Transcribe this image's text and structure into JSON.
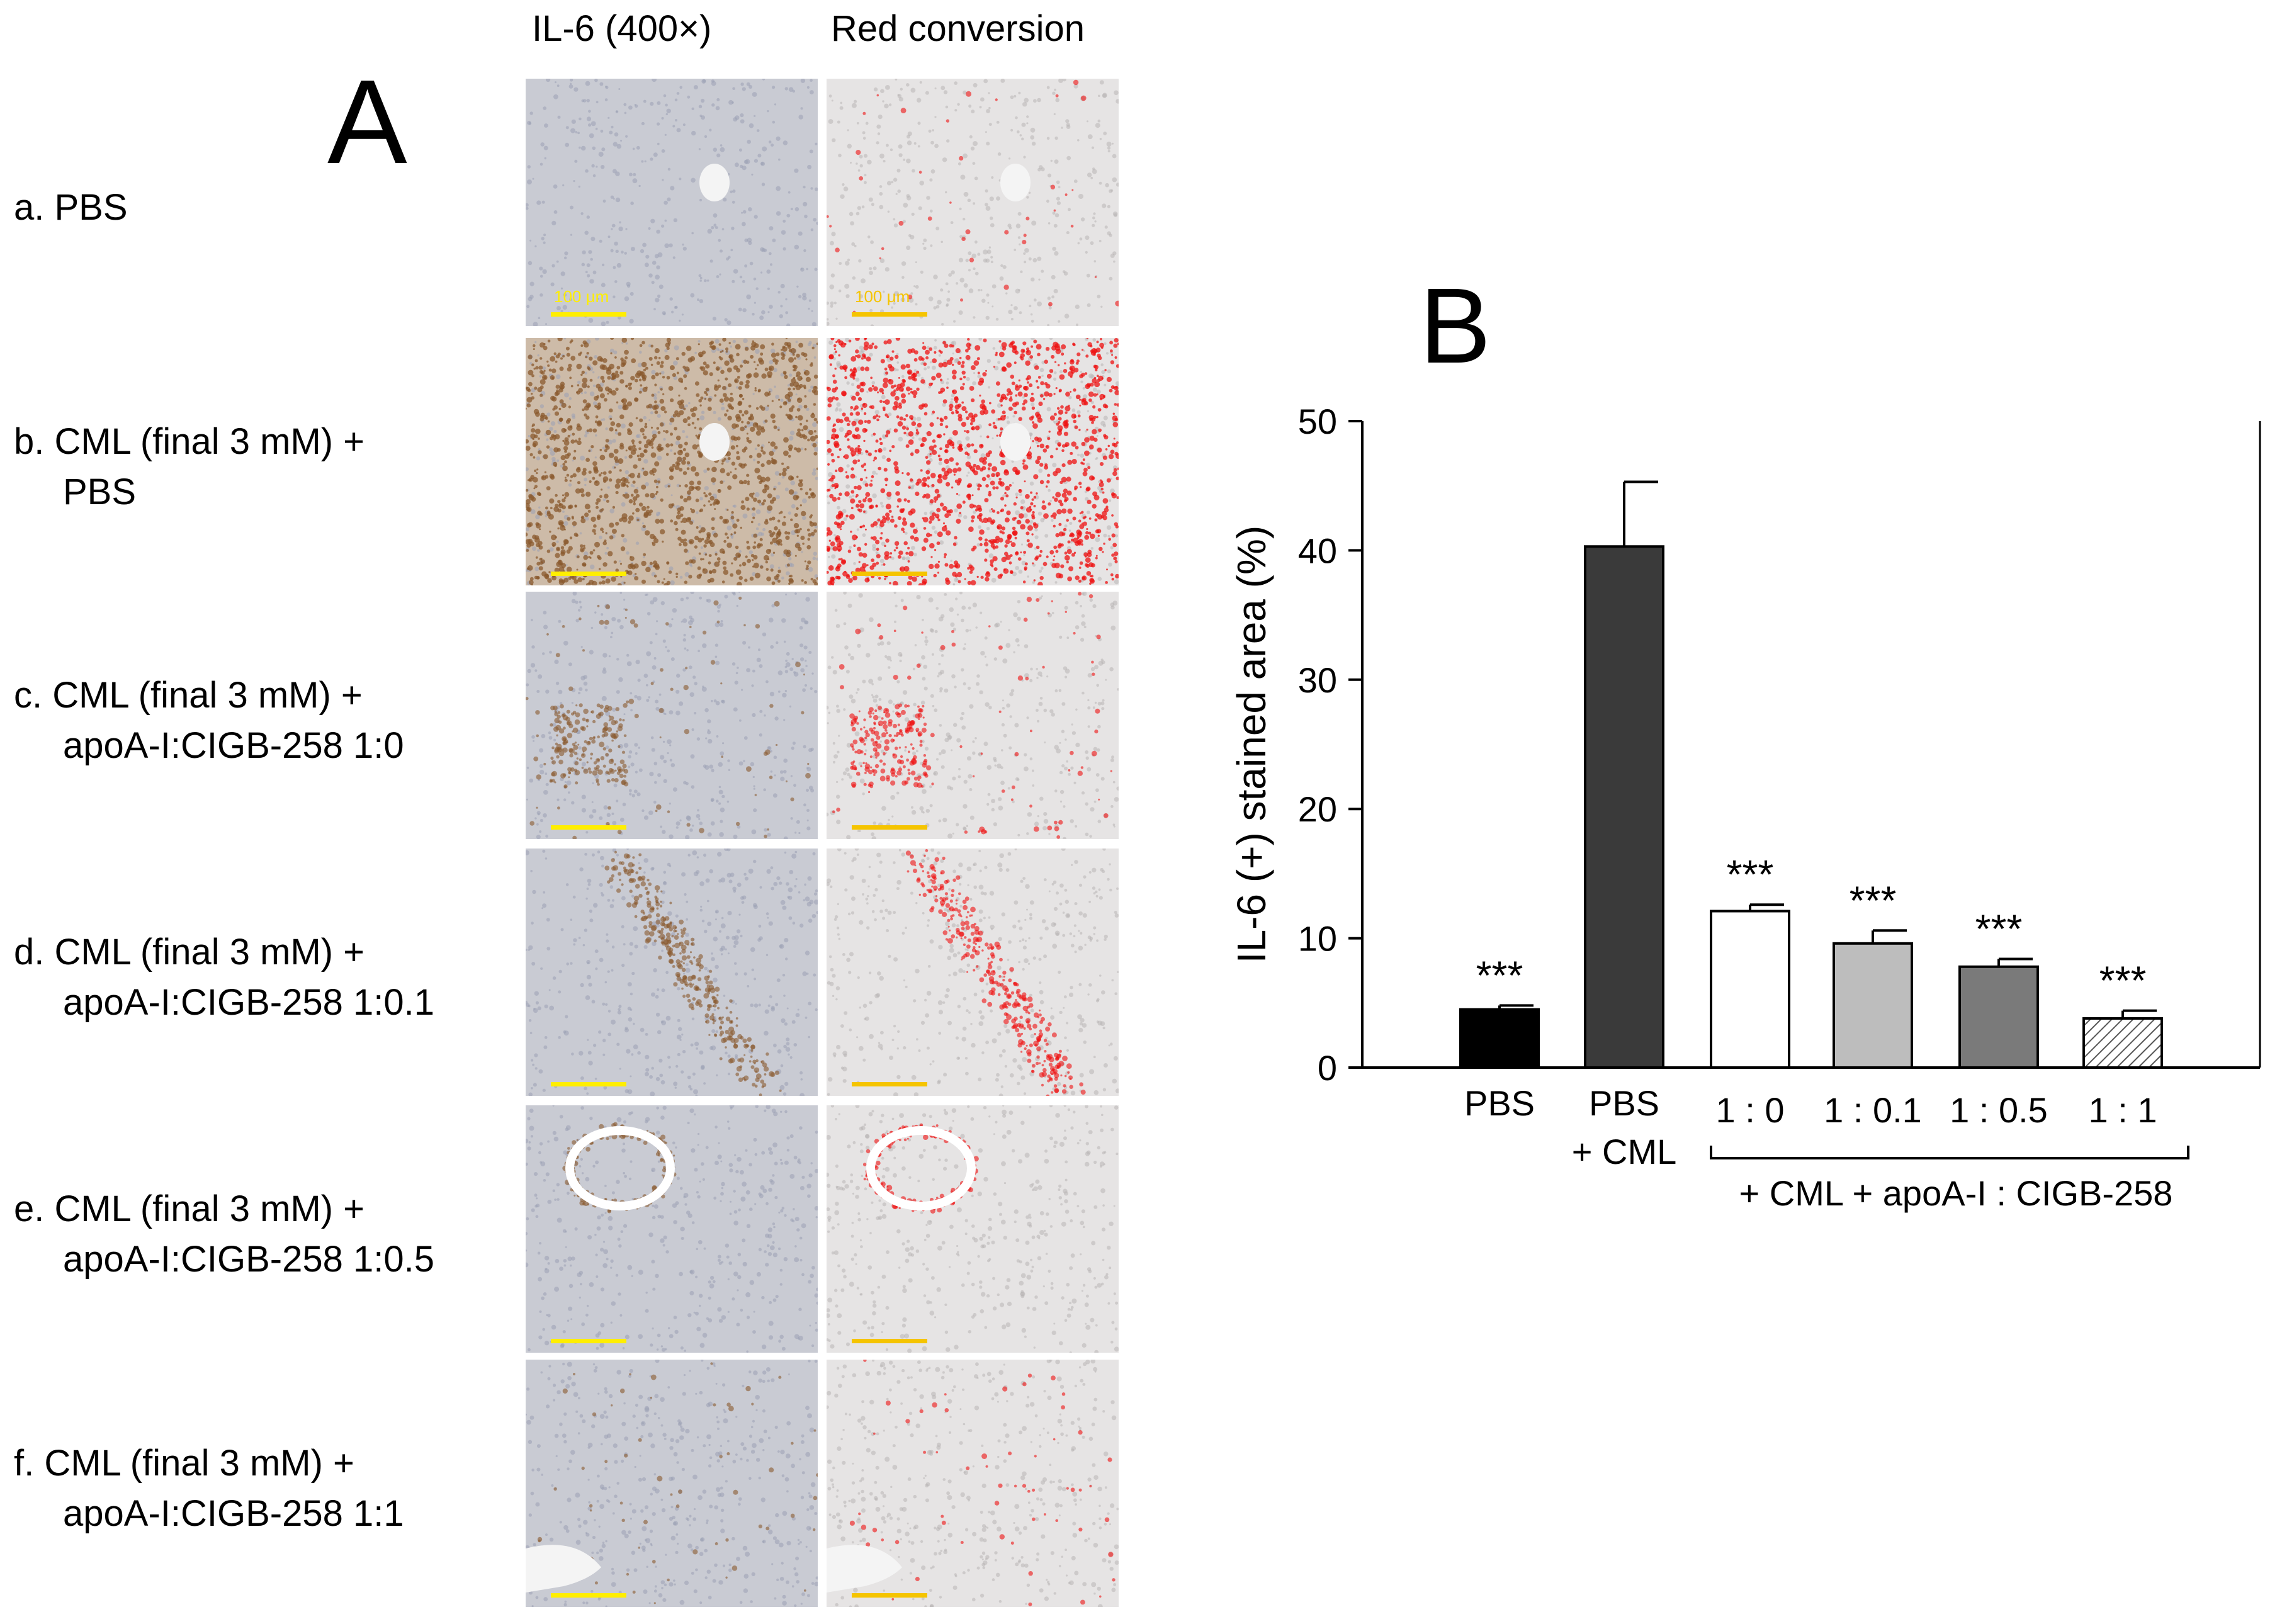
{
  "panel_a": {
    "letter": "A",
    "column_headers": [
      "IL-6 (400×)",
      "Red conversion"
    ],
    "scale_bar_label": "100 μm",
    "rows": [
      {
        "id": "a",
        "lines": [
          "a. PBS"
        ],
        "stain": "none"
      },
      {
        "id": "b",
        "lines": [
          "b. CML (final 3 mM) +",
          "PBS"
        ],
        "stain": "heavy"
      },
      {
        "id": "c",
        "lines": [
          "c. CML (final 3 mM)  +",
          "apoA-I:CIGB-258   1:0"
        ],
        "stain": "focal"
      },
      {
        "id": "d",
        "lines": [
          "d. CML (final 3 mM)  +",
          "apoA-I:CIGB-258   1:0.1"
        ],
        "stain": "vessel"
      },
      {
        "id": "e",
        "lines": [
          "e. CML (final 3 mM)  +",
          "apoA-I:CIGB-258   1:0.5"
        ],
        "stain": "ring"
      },
      {
        "id": "f",
        "lines": [
          "f. CML (final 3 mM) +",
          "apoA-I:CIGB-258   1:1"
        ],
        "stain": "light"
      }
    ]
  },
  "panel_b": {
    "letter": "B"
  },
  "chart_data": {
    "type": "bar",
    "ylabel": "IL-6 (+) stained area (%)",
    "xlabel": "",
    "ylim": [
      0,
      50
    ],
    "yticks": [
      0,
      10,
      20,
      30,
      40,
      50
    ],
    "categories": [
      "PBS",
      "PBS + CML",
      "1 : 0",
      "1 : 0.1",
      "1 : 0.5",
      "1 : 1"
    ],
    "category_lines": [
      [
        "PBS"
      ],
      [
        "PBS",
        "+ CML"
      ],
      [
        "1 : 0"
      ],
      [
        "1 : 0.1"
      ],
      [
        "1 : 0.5"
      ],
      [
        "1 : 1"
      ]
    ],
    "values": [
      4.5,
      40.3,
      12.1,
      9.6,
      7.8,
      3.8
    ],
    "errors": [
      0.3,
      5.0,
      0.5,
      1.0,
      0.6,
      0.6
    ],
    "significance": [
      "***",
      "",
      "***",
      "***",
      "***",
      "***"
    ],
    "bar_colors": [
      "#000000",
      "#3a3a3a",
      "#ffffff",
      "#bdbdbd",
      "#7a7a7a",
      "hatched"
    ],
    "group_bracket_label": "+ CML + apoA-I : CIGB-258",
    "grid": false
  }
}
